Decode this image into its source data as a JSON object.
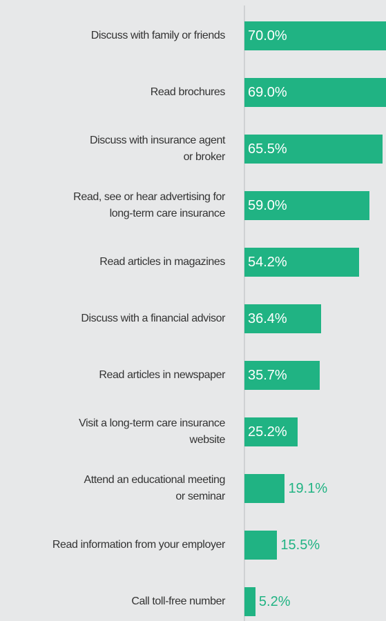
{
  "chart_data": {
    "type": "bar",
    "orientation": "horizontal",
    "categories": [
      "Discuss with family or friends",
      "Read brochures",
      "Discuss with insurance agent\nor broker",
      "Read, see or hear advertising for\nlong-term care insurance",
      "Read articles in magazines",
      "Discuss with a financial advisor",
      "Read articles in newspaper",
      "Visit a long-term care insurance\nwebsite",
      "Attend an educational meeting\nor seminar",
      "Read information from your employer",
      "Call toll-free number"
    ],
    "values": [
      70.0,
      69.0,
      65.5,
      59.0,
      54.2,
      36.4,
      35.7,
      25.2,
      19.1,
      15.5,
      5.2
    ],
    "value_labels": [
      "70.0%",
      "69.0%",
      "65.5%",
      "59.0%",
      "54.2%",
      "36.4%",
      "35.7%",
      "25.2%",
      "19.1%",
      "15.5%",
      "5.2%"
    ],
    "color": "#20b383",
    "xlim": [
      0,
      67
    ]
  }
}
